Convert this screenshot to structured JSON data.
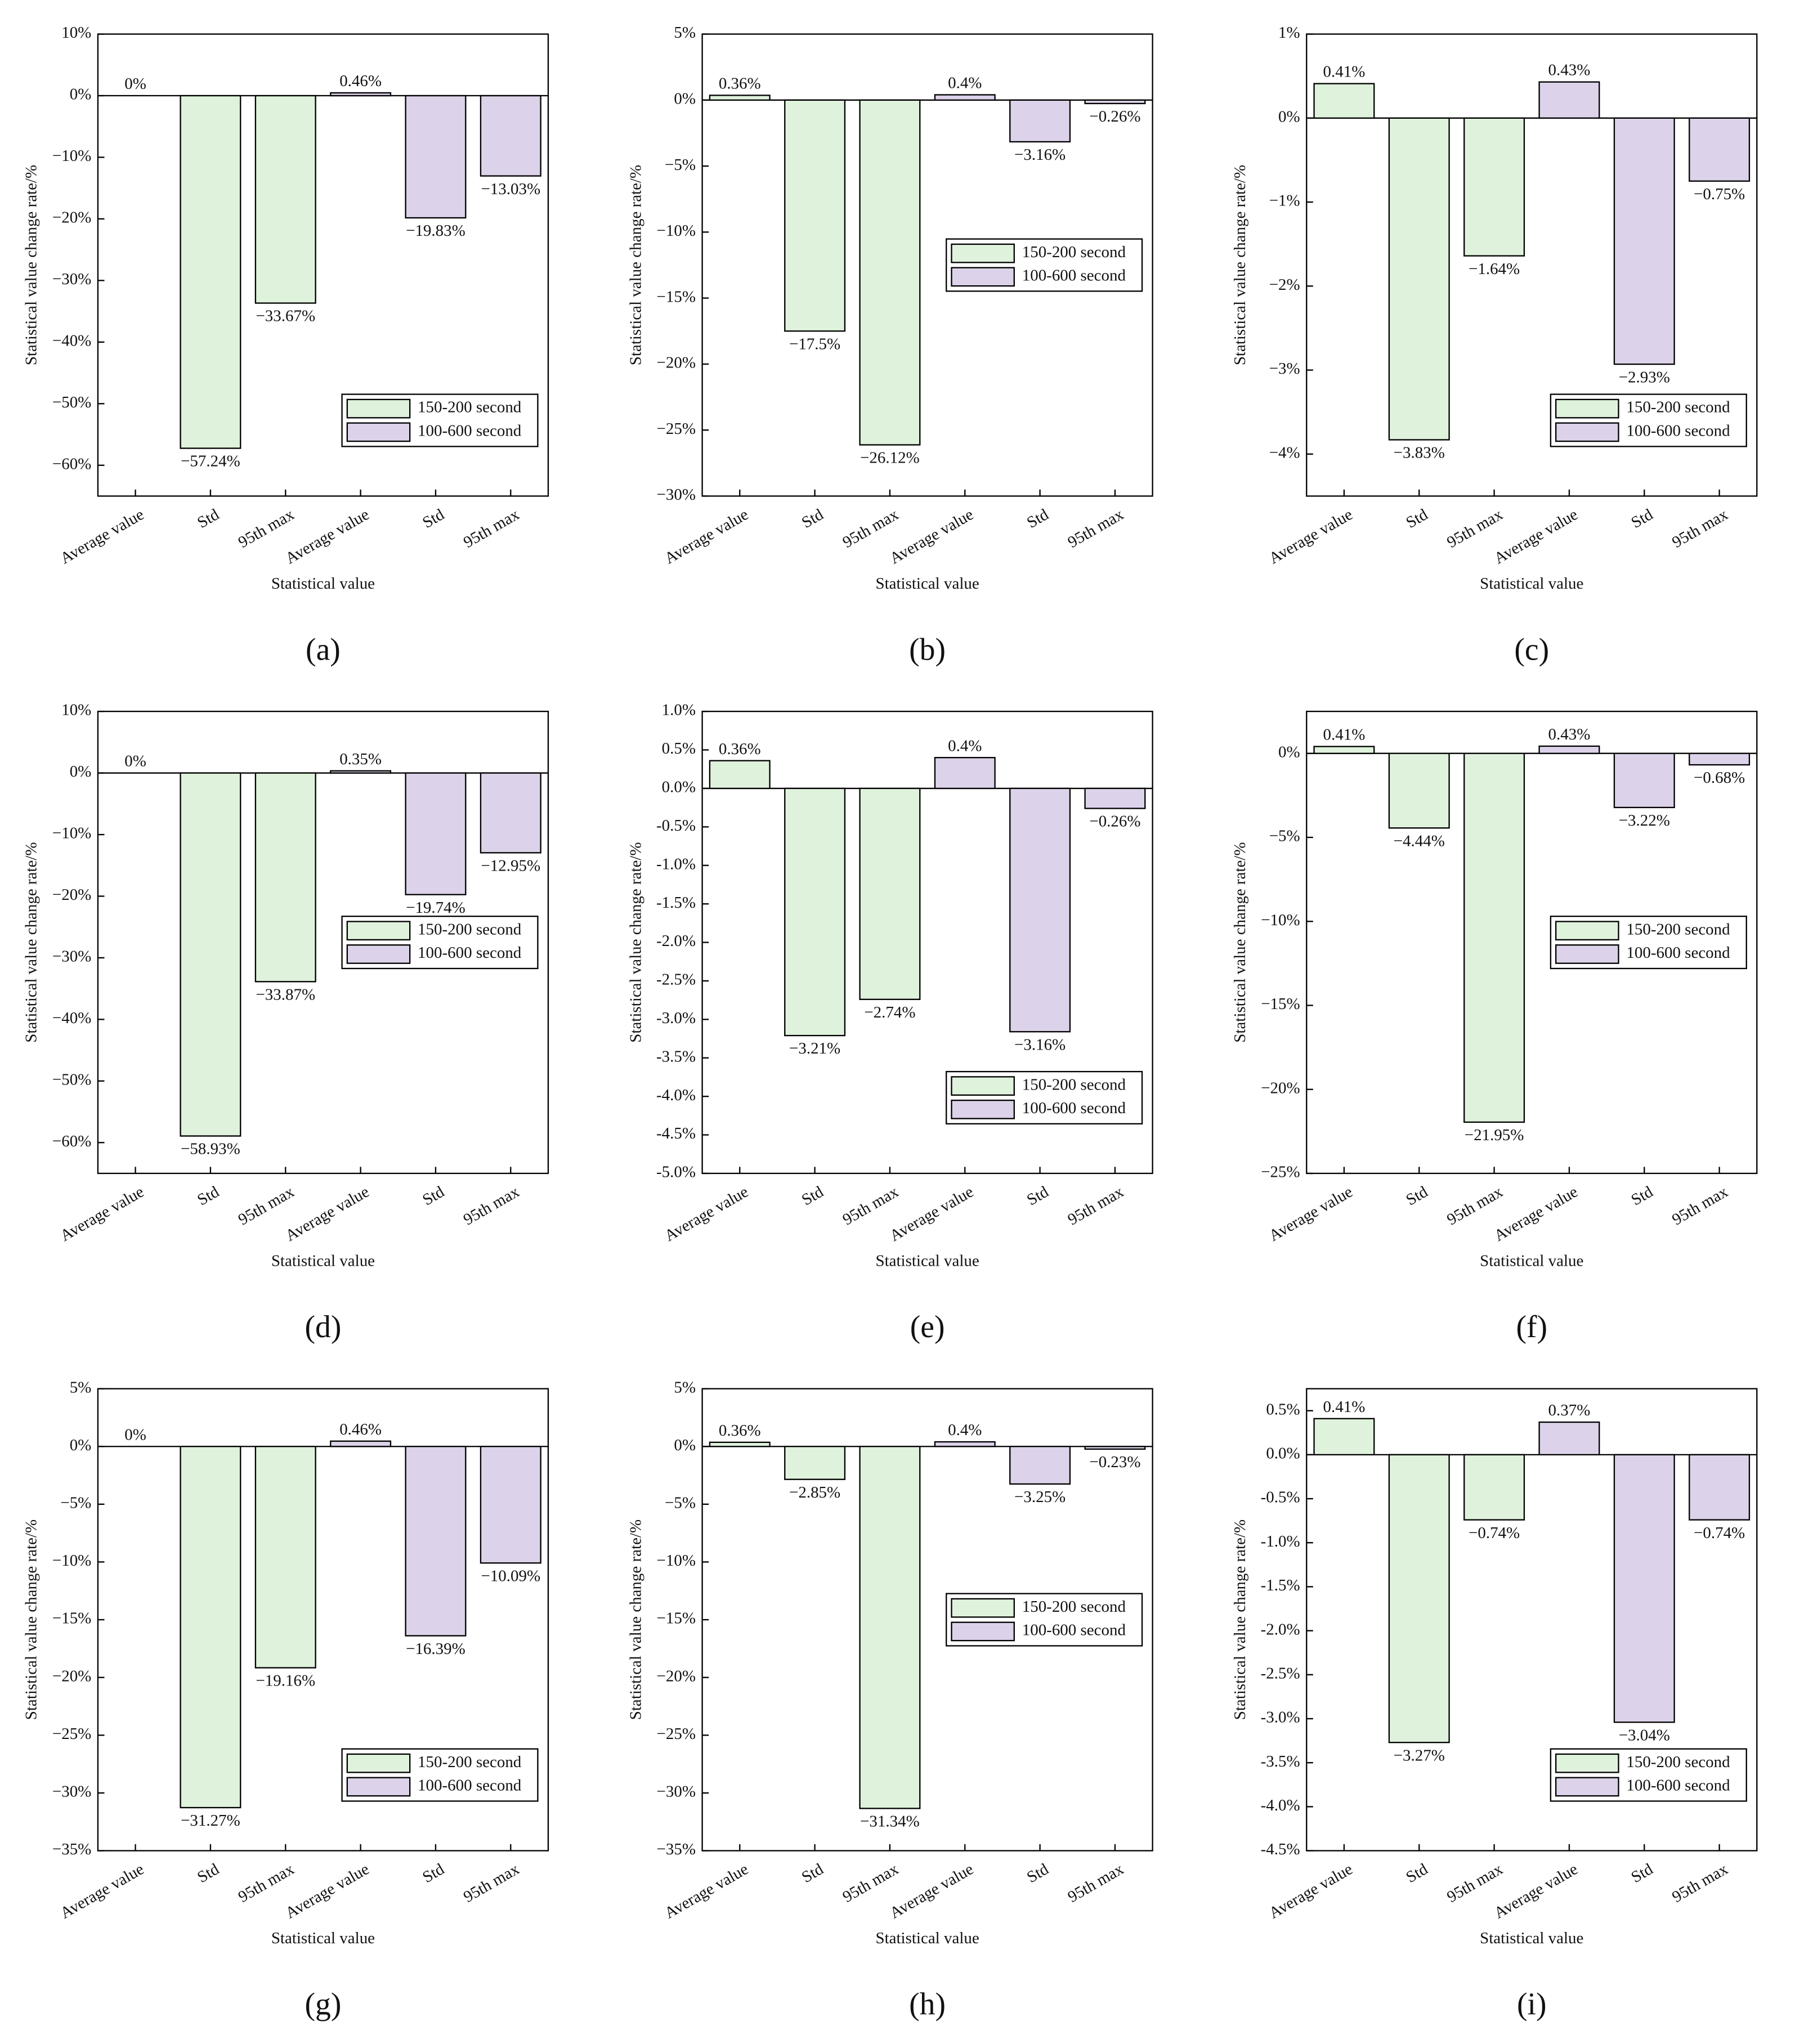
{
  "chart_data": [
    {
      "type": "bar",
      "panel": "(a)",
      "xlabel": "Statistical value",
      "ylabel": "Statistical value change rate/%",
      "categories": [
        "Average value",
        "Std",
        "95th max",
        "Average value",
        "Std",
        "95th max"
      ],
      "series": [
        {
          "name": "150-200 second",
          "color": "#dff2dc",
          "values": [
            0,
            -57.24,
            -33.67,
            null,
            null,
            null
          ],
          "value_labels": [
            "0%",
            "−57.24%",
            "−33.67%",
            null,
            null,
            null
          ]
        },
        {
          "name": "100-600 second",
          "color": "#dcd2e9",
          "values": [
            null,
            null,
            null,
            0.46,
            -19.83,
            -13.03
          ],
          "value_labels": [
            null,
            null,
            null,
            "0.46%",
            "−19.83%",
            "−13.03%"
          ]
        }
      ],
      "ylim": [
        -65,
        10
      ],
      "yticks": [
        {
          "value": 10,
          "label": "10%"
        },
        {
          "value": 0,
          "label": "0%"
        },
        {
          "value": -10,
          "label": "−10%"
        },
        {
          "value": -20,
          "label": "−20%"
        },
        {
          "value": -30,
          "label": "−30%"
        },
        {
          "value": -40,
          "label": "−40%"
        },
        {
          "value": -50,
          "label": "−50%"
        },
        {
          "value": -60,
          "label": "−60%"
        }
      ],
      "legend": "lower right"
    },
    {
      "type": "bar",
      "panel": "(b)",
      "xlabel": "Statistical value",
      "ylabel": "Statistical value change rate/%",
      "categories": [
        "Average value",
        "Std",
        "95th max",
        "Average value",
        "Std",
        "95th max"
      ],
      "series": [
        {
          "name": "150-200 second",
          "color": "#dff2dc",
          "values": [
            0.36,
            -17.5,
            -26.12,
            null,
            null,
            null
          ],
          "value_labels": [
            "0.36%",
            "−17.5%",
            "−26.12%",
            null,
            null,
            null
          ]
        },
        {
          "name": "100-600 second",
          "color": "#dcd2e9",
          "values": [
            null,
            null,
            null,
            0.4,
            -3.16,
            -0.26
          ],
          "value_labels": [
            null,
            null,
            null,
            "0.4%",
            "−3.16%",
            "−0.26%"
          ]
        }
      ],
      "ylim": [
        -30,
        5
      ],
      "yticks": [
        {
          "value": 5,
          "label": "5%"
        },
        {
          "value": 0,
          "label": "0%"
        },
        {
          "value": -5,
          "label": "−5%"
        },
        {
          "value": -10,
          "label": "−10%"
        },
        {
          "value": -15,
          "label": "−15%"
        },
        {
          "value": -20,
          "label": "−20%"
        },
        {
          "value": -25,
          "label": "−25%"
        },
        {
          "value": -30,
          "label": "−30%"
        }
      ],
      "legend": "center right"
    },
    {
      "type": "bar",
      "panel": "(c)",
      "xlabel": "Statistical value",
      "ylabel": "Statistical value change rate/%",
      "categories": [
        "Average value",
        "Std",
        "95th max",
        "Average value",
        "Std",
        "95th max"
      ],
      "series": [
        {
          "name": "150-200 second",
          "color": "#dff2dc",
          "values": [
            0.41,
            -3.83,
            -1.64,
            null,
            null,
            null
          ],
          "value_labels": [
            "0.41%",
            "−3.83%",
            "−1.64%",
            null,
            null,
            null
          ]
        },
        {
          "name": "100-600 second",
          "color": "#dcd2e9",
          "values": [
            null,
            null,
            null,
            0.43,
            -2.93,
            -0.75
          ],
          "value_labels": [
            null,
            null,
            null,
            "0.43%",
            "−2.93%",
            "−0.75%"
          ]
        }
      ],
      "ylim": [
        -4.5,
        1
      ],
      "yticks": [
        {
          "value": 1,
          "label": "1%"
        },
        {
          "value": 0,
          "label": "0%"
        },
        {
          "value": -1,
          "label": "−1%"
        },
        {
          "value": -2,
          "label": "−2%"
        },
        {
          "value": -3,
          "label": "−3%"
        },
        {
          "value": -4,
          "label": "−4%"
        }
      ],
      "legend": "lower right"
    },
    {
      "type": "bar",
      "panel": "(d)",
      "xlabel": "Statistical value",
      "ylabel": "Statistical value change rate/%",
      "categories": [
        "Average value",
        "Std",
        "95th max",
        "Average value",
        "Std",
        "95th max"
      ],
      "series": [
        {
          "name": "150-200 second",
          "color": "#dff2dc",
          "values": [
            0,
            -58.93,
            -33.87,
            null,
            null,
            null
          ],
          "value_labels": [
            "0%",
            "−58.93%",
            "−33.87%",
            null,
            null,
            null
          ]
        },
        {
          "name": "100-600 second",
          "color": "#dcd2e9",
          "values": [
            null,
            null,
            null,
            0.35,
            -19.74,
            -12.95
          ],
          "value_labels": [
            null,
            null,
            null,
            "0.35%",
            "−19.74%",
            "−12.95%"
          ]
        }
      ],
      "ylim": [
        -65,
        10
      ],
      "yticks": [
        {
          "value": 10,
          "label": "10%"
        },
        {
          "value": 0,
          "label": "0%"
        },
        {
          "value": -10,
          "label": "−10%"
        },
        {
          "value": -20,
          "label": "−20%"
        },
        {
          "value": -30,
          "label": "−30%"
        },
        {
          "value": -40,
          "label": "−40%"
        },
        {
          "value": -50,
          "label": "−50%"
        },
        {
          "value": -60,
          "label": "−60%"
        }
      ],
      "legend": "center right"
    },
    {
      "type": "bar",
      "panel": "(e)",
      "xlabel": "Statistical value",
      "ylabel": "Statistical value change rate/%",
      "categories": [
        "Average value",
        "Std",
        "95th max",
        "Average value",
        "Std",
        "95th max"
      ],
      "series": [
        {
          "name": "150-200 second",
          "color": "#dff2dc",
          "values": [
            0.36,
            -3.21,
            -2.74,
            null,
            null,
            null
          ],
          "value_labels": [
            "0.36%",
            "−3.21%",
            "−2.74%",
            null,
            null,
            null
          ]
        },
        {
          "name": "100-600 second",
          "color": "#dcd2e9",
          "values": [
            null,
            null,
            null,
            0.4,
            -3.16,
            -0.26
          ],
          "value_labels": [
            null,
            null,
            null,
            "0.4%",
            "−3.16%",
            "−0.26%"
          ]
        }
      ],
      "ylim": [
        -5,
        1
      ],
      "yticks": [
        {
          "value": 1,
          "label": "1.0%"
        },
        {
          "value": 0.5,
          "label": "0.5%"
        },
        {
          "value": 0,
          "label": "0.0%"
        },
        {
          "value": -0.5,
          "label": "-0.5%"
        },
        {
          "value": -1,
          "label": "-1.0%"
        },
        {
          "value": -1.5,
          "label": "-1.5%"
        },
        {
          "value": -2,
          "label": "-2.0%"
        },
        {
          "value": -2.5,
          "label": "-2.5%"
        },
        {
          "value": -3,
          "label": "-3.0%"
        },
        {
          "value": -3.5,
          "label": "-3.5%"
        },
        {
          "value": -4,
          "label": "-4.0%"
        },
        {
          "value": -4.5,
          "label": "-4.5%"
        },
        {
          "value": -5,
          "label": "-5.0%"
        }
      ],
      "legend": "lower right"
    },
    {
      "type": "bar",
      "panel": "(f)",
      "xlabel": "Statistical value",
      "ylabel": "Statistical value change rate/%",
      "categories": [
        "Average value",
        "Std",
        "95th max",
        "Average value",
        "Std",
        "95th max"
      ],
      "series": [
        {
          "name": "150-200 second",
          "color": "#dff2dc",
          "values": [
            0.41,
            -4.44,
            -21.95,
            null,
            null,
            null
          ],
          "value_labels": [
            "0.41%",
            "−4.44%",
            "−21.95%",
            null,
            null,
            null
          ]
        },
        {
          "name": "100-600 second",
          "color": "#dcd2e9",
          "values": [
            null,
            null,
            null,
            0.43,
            -3.22,
            -0.68
          ],
          "value_labels": [
            null,
            null,
            null,
            "0.43%",
            "−3.22%",
            "−0.68%"
          ]
        }
      ],
      "ylim": [
        -25,
        2.5
      ],
      "yticks": [
        {
          "value": 0,
          "label": "0%"
        },
        {
          "value": -5,
          "label": "−5%"
        },
        {
          "value": -10,
          "label": "−10%"
        },
        {
          "value": -15,
          "label": "−15%"
        },
        {
          "value": -20,
          "label": "−20%"
        },
        {
          "value": -25,
          "label": "−25%"
        }
      ],
      "legend": "center right"
    },
    {
      "type": "bar",
      "panel": "(g)",
      "xlabel": "Statistical value",
      "ylabel": "Statistical value change rate/%",
      "categories": [
        "Average value",
        "Std",
        "95th max",
        "Average value",
        "Std",
        "95th max"
      ],
      "series": [
        {
          "name": "150-200 second",
          "color": "#dff2dc",
          "values": [
            0,
            -31.27,
            -19.16,
            null,
            null,
            null
          ],
          "value_labels": [
            "0%",
            "−31.27%",
            "−19.16%",
            null,
            null,
            null
          ]
        },
        {
          "name": "100-600 second",
          "color": "#dcd2e9",
          "values": [
            null,
            null,
            null,
            0.46,
            -16.39,
            -10.09
          ],
          "value_labels": [
            null,
            null,
            null,
            "0.46%",
            "−16.39%",
            "−10.09%"
          ]
        }
      ],
      "ylim": [
        -35,
        5
      ],
      "yticks": [
        {
          "value": 5,
          "label": "5%"
        },
        {
          "value": 0,
          "label": "0%"
        },
        {
          "value": -5,
          "label": "−5%"
        },
        {
          "value": -10,
          "label": "−10%"
        },
        {
          "value": -15,
          "label": "−15%"
        },
        {
          "value": -20,
          "label": "−20%"
        },
        {
          "value": -25,
          "label": "−25%"
        },
        {
          "value": -30,
          "label": "−30%"
        },
        {
          "value": -35,
          "label": "−35%"
        }
      ],
      "legend": "lower right"
    },
    {
      "type": "bar",
      "panel": "(h)",
      "xlabel": "Statistical value",
      "ylabel": "Statistical value change rate/%",
      "categories": [
        "Average value",
        "Std",
        "95th max",
        "Average value",
        "Std",
        "95th max"
      ],
      "series": [
        {
          "name": "150-200 second",
          "color": "#dff2dc",
          "values": [
            0.36,
            -2.85,
            -31.34,
            null,
            null,
            null
          ],
          "value_labels": [
            "0.36%",
            "−2.85%",
            "−31.34%",
            null,
            null,
            null
          ]
        },
        {
          "name": "100-600 second",
          "color": "#dcd2e9",
          "values": [
            null,
            null,
            null,
            0.4,
            -3.25,
            -0.23
          ],
          "value_labels": [
            null,
            null,
            null,
            "0.4%",
            "−3.25%",
            "−0.23%"
          ]
        }
      ],
      "ylim": [
        -35,
        5
      ],
      "yticks": [
        {
          "value": 5,
          "label": "5%"
        },
        {
          "value": 0,
          "label": "0%"
        },
        {
          "value": -5,
          "label": "−5%"
        },
        {
          "value": -10,
          "label": "−10%"
        },
        {
          "value": -15,
          "label": "−15%"
        },
        {
          "value": -20,
          "label": "−20%"
        },
        {
          "value": -25,
          "label": "−25%"
        },
        {
          "value": -30,
          "label": "−30%"
        },
        {
          "value": -35,
          "label": "−35%"
        }
      ],
      "legend": "center right"
    },
    {
      "type": "bar",
      "panel": "(i)",
      "xlabel": "Statistical value",
      "ylabel": "Statistical value change rate/%",
      "categories": [
        "Average value",
        "Std",
        "95th max",
        "Average value",
        "Std",
        "95th max"
      ],
      "series": [
        {
          "name": "150-200 second",
          "color": "#dff2dc",
          "values": [
            0.41,
            -3.27,
            -0.74,
            null,
            null,
            null
          ],
          "value_labels": [
            "0.41%",
            "−3.27%",
            "−0.74%",
            null,
            null,
            null
          ]
        },
        {
          "name": "100-600 second",
          "color": "#dcd2e9",
          "values": [
            null,
            null,
            null,
            0.37,
            -3.04,
            -0.74
          ],
          "value_labels": [
            null,
            null,
            null,
            "0.37%",
            "−3.04%",
            "−0.74%"
          ]
        }
      ],
      "ylim": [
        -4.5,
        0.75
      ],
      "yticks": [
        {
          "value": 0.5,
          "label": "0.5%"
        },
        {
          "value": 0,
          "label": "0.0%"
        },
        {
          "value": -0.5,
          "label": "-0.5%"
        },
        {
          "value": -1,
          "label": "-1.0%"
        },
        {
          "value": -1.5,
          "label": "-1.5%"
        },
        {
          "value": -2,
          "label": "-2.0%"
        },
        {
          "value": -2.5,
          "label": "-2.5%"
        },
        {
          "value": -3,
          "label": "-3.0%"
        },
        {
          "value": -3.5,
          "label": "-3.5%"
        },
        {
          "value": -4,
          "label": "-4.0%"
        },
        {
          "value": -4.5,
          "label": "-4.5%"
        }
      ],
      "legend": "lower right"
    }
  ]
}
